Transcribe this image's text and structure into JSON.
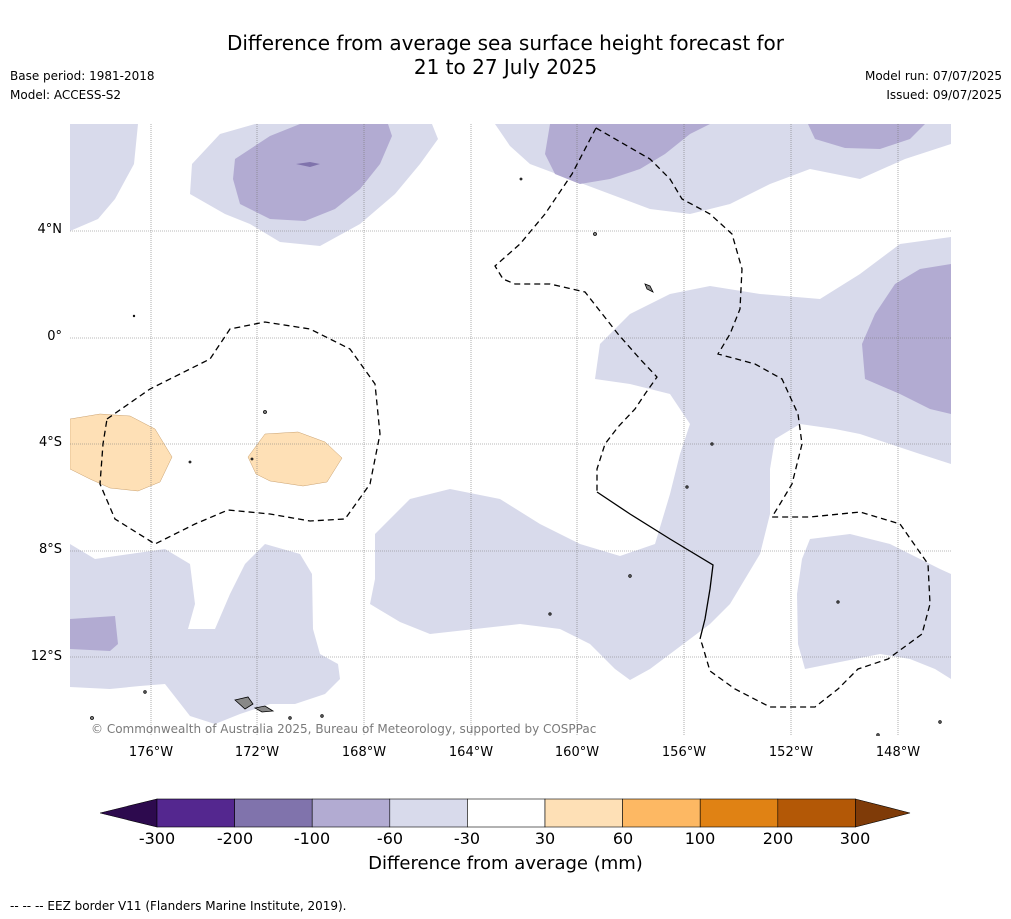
{
  "header": {
    "title_line1": "Difference from average sea surface height forecast for",
    "title_line2": "21 to 27 July 2025",
    "base_period": "Base period: 1981-2018",
    "model": "Model: ACCESS-S2",
    "model_run": "Model run: 07/07/2025",
    "issued": "Issued: 09/07/2025"
  },
  "map": {
    "copyright": "© Commonwealth of Australia 2025, Bureau of Meteorology, supported by COSPPac",
    "lat_labels": [
      "4°N",
      "0°",
      "4°S",
      "8°S",
      "12°S"
    ],
    "lon_labels": [
      "176°W",
      "172°W",
      "168°W",
      "164°W",
      "160°W",
      "156°W",
      "152°W",
      "148°W"
    ]
  },
  "colorbar": {
    "label": "Difference from average (mm)",
    "ticks": [
      "-300",
      "-200",
      "-100",
      "-60",
      "-30",
      "30",
      "60",
      "100",
      "200",
      "300"
    ],
    "colors": [
      "#2d0a4e",
      "#54278f",
      "#8073ac",
      "#b2abd2",
      "#d8daeb",
      "#ffffff",
      "#fee0b6",
      "#fdb863",
      "#e08214",
      "#b35806",
      "#7f3b08"
    ]
  },
  "footnote": "--  --  -- EEZ border V11 (Flanders Marine Institute, 2019)."
}
